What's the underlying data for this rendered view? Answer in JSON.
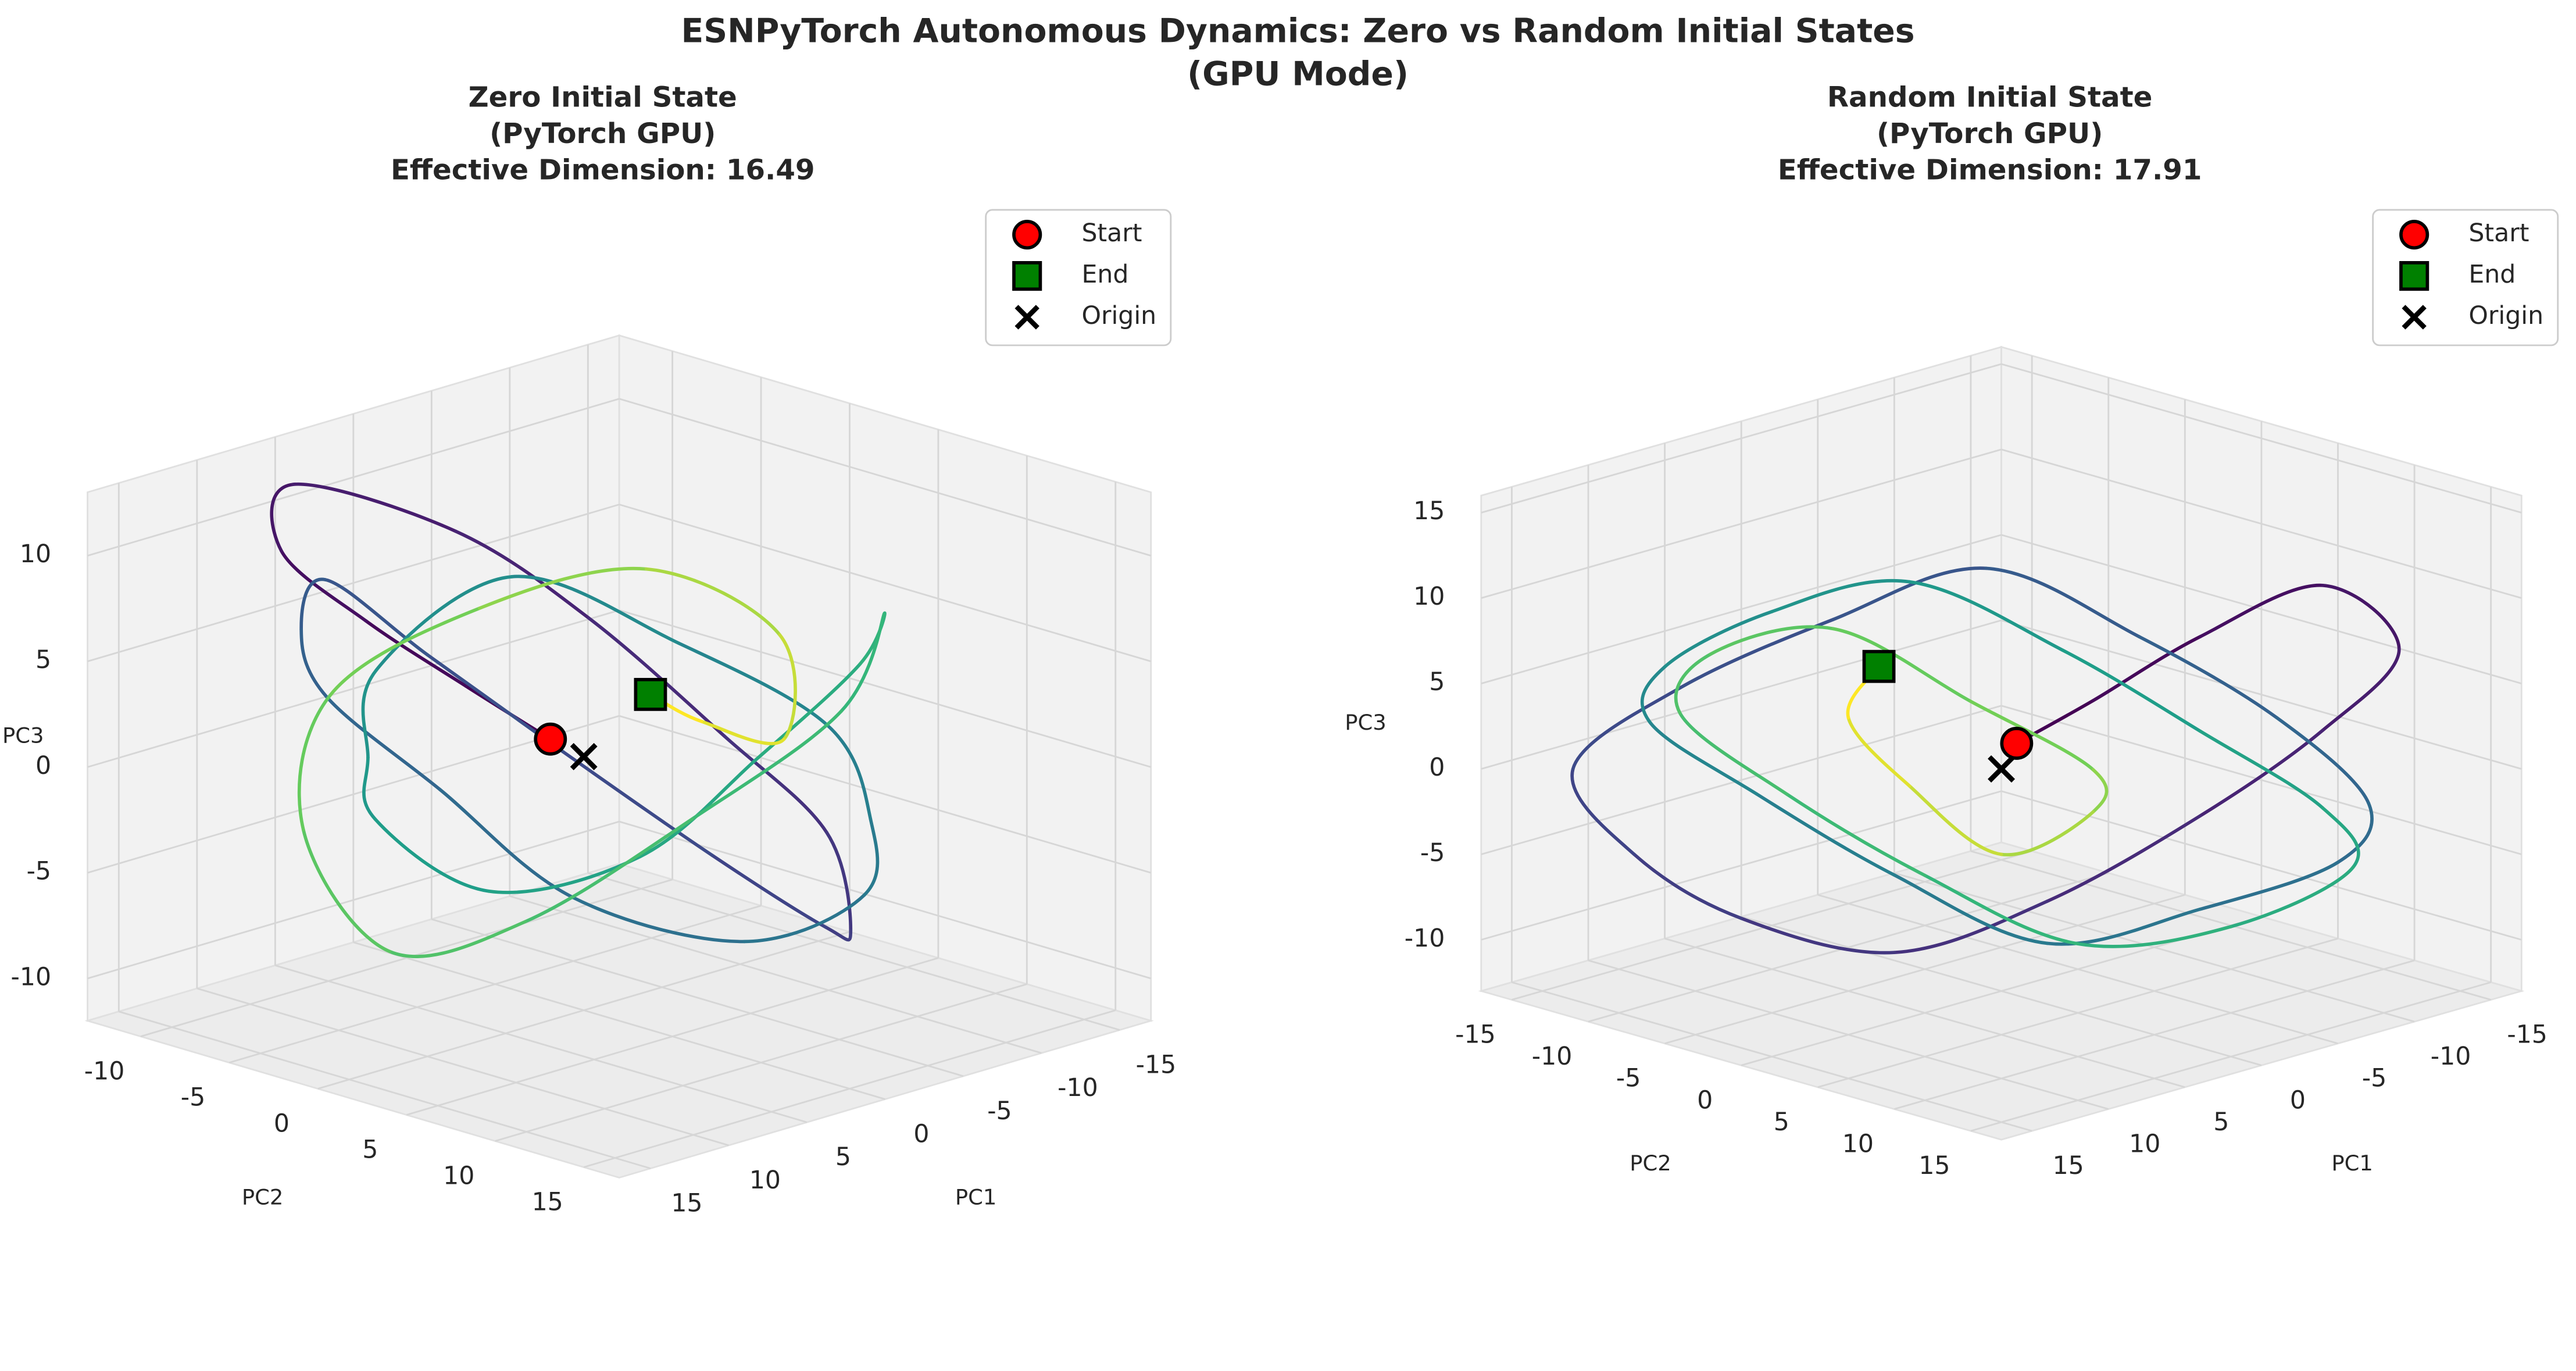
{
  "chart_data": [
    {
      "type": "line3d",
      "title": [
        "Zero Initial State",
        "(PyTorch GPU)",
        "Effective Dimension: 16.49"
      ],
      "suptitle": [
        "ESNPyTorch Autonomous Dynamics: Zero vs Random Initial States",
        "(GPU Mode)"
      ],
      "xlabel": "PC1",
      "ylabel": "PC2",
      "zlabel": "PC3",
      "colormap": "viridis",
      "grid": true,
      "legend": "upper right",
      "xlim": [
        -17,
        17
      ],
      "ylim": [
        -13,
        17
      ],
      "zlim": [
        -12,
        13
      ],
      "xticks": [
        -15,
        -10,
        -5,
        0,
        5,
        10,
        15
      ],
      "yticks": [
        -10,
        -5,
        0,
        5,
        10,
        15
      ],
      "zticks": [
        -10,
        -5,
        0,
        5,
        10
      ],
      "x": [
        1,
        3,
        6,
        8,
        5,
        -2,
        -6,
        -9,
        -11,
        -8,
        -3,
        2,
        7,
        10,
        12,
        9,
        4,
        -1,
        -5,
        -8,
        -10,
        -7,
        -2,
        3,
        8,
        11,
        7,
        2,
        -3,
        -7,
        -10,
        -12,
        -9,
        -4,
        1,
        6,
        9,
        10,
        6,
        1,
        -4,
        -8,
        -6,
        -3,
        -2
      ],
      "y": [
        -1,
        -4,
        -7,
        -10,
        -12,
        -9,
        -5,
        0,
        4,
        8,
        11,
        9,
        5,
        0,
        -4,
        -8,
        -11,
        -9,
        -5,
        2,
        7,
        10,
        12,
        8,
        3,
        -2,
        -6,
        -10,
        -8,
        -3,
        1,
        5,
        9,
        11,
        7,
        2,
        -3,
        -7,
        -9,
        -5,
        0,
        4,
        6,
        4,
        2
      ],
      "z": [
        0.8,
        3,
        6,
        9,
        11,
        8,
        4,
        -1,
        -5,
        -8,
        -6,
        -2,
        3,
        7,
        10,
        6,
        1,
        -4,
        -9,
        -10,
        -7,
        -2,
        4,
        8,
        11,
        6,
        0,
        -5,
        -9,
        -7,
        -2,
        3,
        7,
        4,
        -1,
        -6,
        -8,
        -3,
        2,
        6,
        8,
        5,
        1,
        2,
        3
      ],
      "markers": [
        {
          "name": "Start",
          "marker": "circle",
          "color": "#ff0000",
          "x": 1,
          "y": -1,
          "z": 0.8
        },
        {
          "name": "End",
          "marker": "square",
          "color": "#008000",
          "x": -2,
          "y": 2,
          "z": 3
        },
        {
          "name": "Origin",
          "marker": "x",
          "color": "#000000",
          "x": 0,
          "y": 0,
          "z": 0
        }
      ]
    },
    {
      "type": "line3d",
      "title": [
        "Random Initial State",
        "(PyTorch GPU)",
        "Effective Dimension: 17.91"
      ],
      "xlabel": "PC1",
      "ylabel": "PC2",
      "zlabel": "PC3",
      "colormap": "viridis",
      "grid": true,
      "legend": "upper right",
      "xlim": [
        -17,
        17
      ],
      "ylim": [
        -17,
        17
      ],
      "zlim": [
        -13,
        16
      ],
      "xticks": [
        -15,
        -10,
        -5,
        0,
        5,
        10,
        15
      ],
      "yticks": [
        -15,
        -10,
        -5,
        0,
        5,
        10,
        15
      ],
      "zticks": [
        -10,
        -5,
        0,
        5,
        10,
        15
      ],
      "x": [
        -0.5,
        -3,
        -6,
        -10,
        -13,
        -11,
        -7,
        -2,
        3,
        8,
        12,
        14,
        11,
        6,
        1,
        -4,
        -9,
        -12,
        -14,
        -10,
        -5,
        0,
        5,
        10,
        13,
        11,
        7,
        2,
        -3,
        -8,
        -12,
        -9,
        -4,
        1,
        6,
        10,
        12,
        9,
        5,
        1,
        -2,
        0,
        3,
        5,
        4
      ],
      "y": [
        0.5,
        3,
        7,
        11,
        13,
        10,
        6,
        1,
        -4,
        -9,
        -12,
        -14,
        -10,
        -5,
        0,
        5,
        9,
        12,
        8,
        3,
        -2,
        -7,
        -11,
        -13,
        -9,
        -4,
        1,
        6,
        10,
        13,
        11,
        6,
        1,
        -4,
        -8,
        -11,
        -7,
        -2,
        3,
        7,
        4,
        0,
        -3,
        -5,
        -4
      ],
      "z": [
        1.5,
        4,
        8,
        11,
        7,
        2,
        -3,
        -8,
        -11,
        -9,
        -5,
        0,
        5,
        9,
        12,
        8,
        3,
        -2,
        -7,
        -10,
        -12,
        -8,
        -3,
        2,
        7,
        11,
        13,
        9,
        4,
        -1,
        -6,
        -10,
        -11,
        -7,
        -2,
        3,
        8,
        10,
        6,
        2,
        -2,
        -5,
        -1,
        3,
        6
      ],
      "markers": [
        {
          "name": "Start",
          "marker": "circle",
          "color": "#ff0000",
          "x": -0.5,
          "y": 0.5,
          "z": 1.5
        },
        {
          "name": "End",
          "marker": "square",
          "color": "#008000",
          "x": 4,
          "y": -4,
          "z": 6
        },
        {
          "name": "Origin",
          "marker": "x",
          "color": "#000000",
          "x": 0,
          "y": 0,
          "z": 0
        }
      ]
    }
  ]
}
